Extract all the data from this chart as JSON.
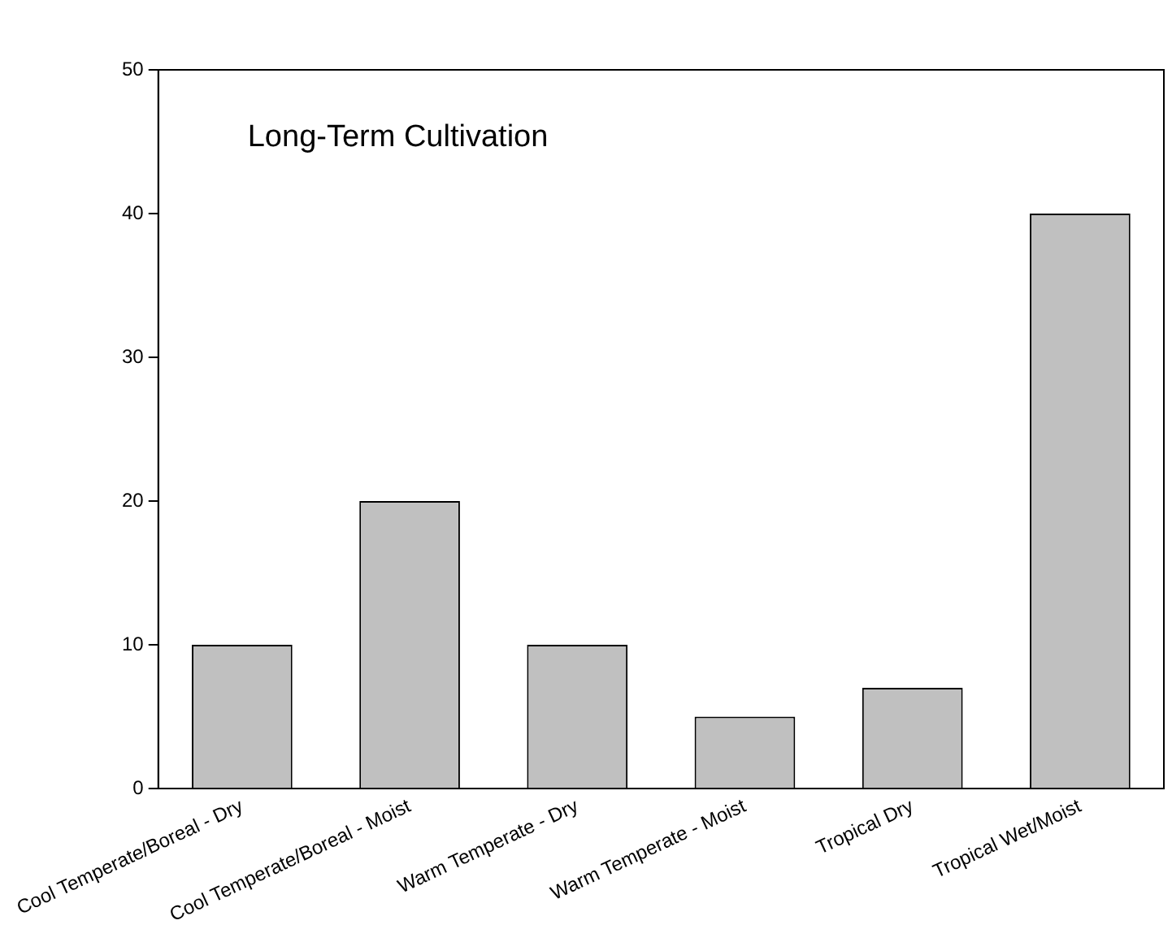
{
  "chart_data": {
    "type": "bar",
    "title": "Long-Term Cultivation",
    "categories": [
      "Cool Temperate/Boreal - Dry",
      "Cool Temperate/Boreal - Moist",
      "Warm Temperate - Dry",
      "Warm Temperate - Moist",
      "Tropical Dry",
      "Tropical Wet/Moist"
    ],
    "values": [
      10,
      20,
      10,
      5,
      7,
      40
    ],
    "color": "#c0c0c0",
    "ylim": [
      0,
      50
    ],
    "yticks": [
      0,
      10,
      20,
      30,
      40,
      50
    ],
    "grid": false,
    "legend": false
  }
}
